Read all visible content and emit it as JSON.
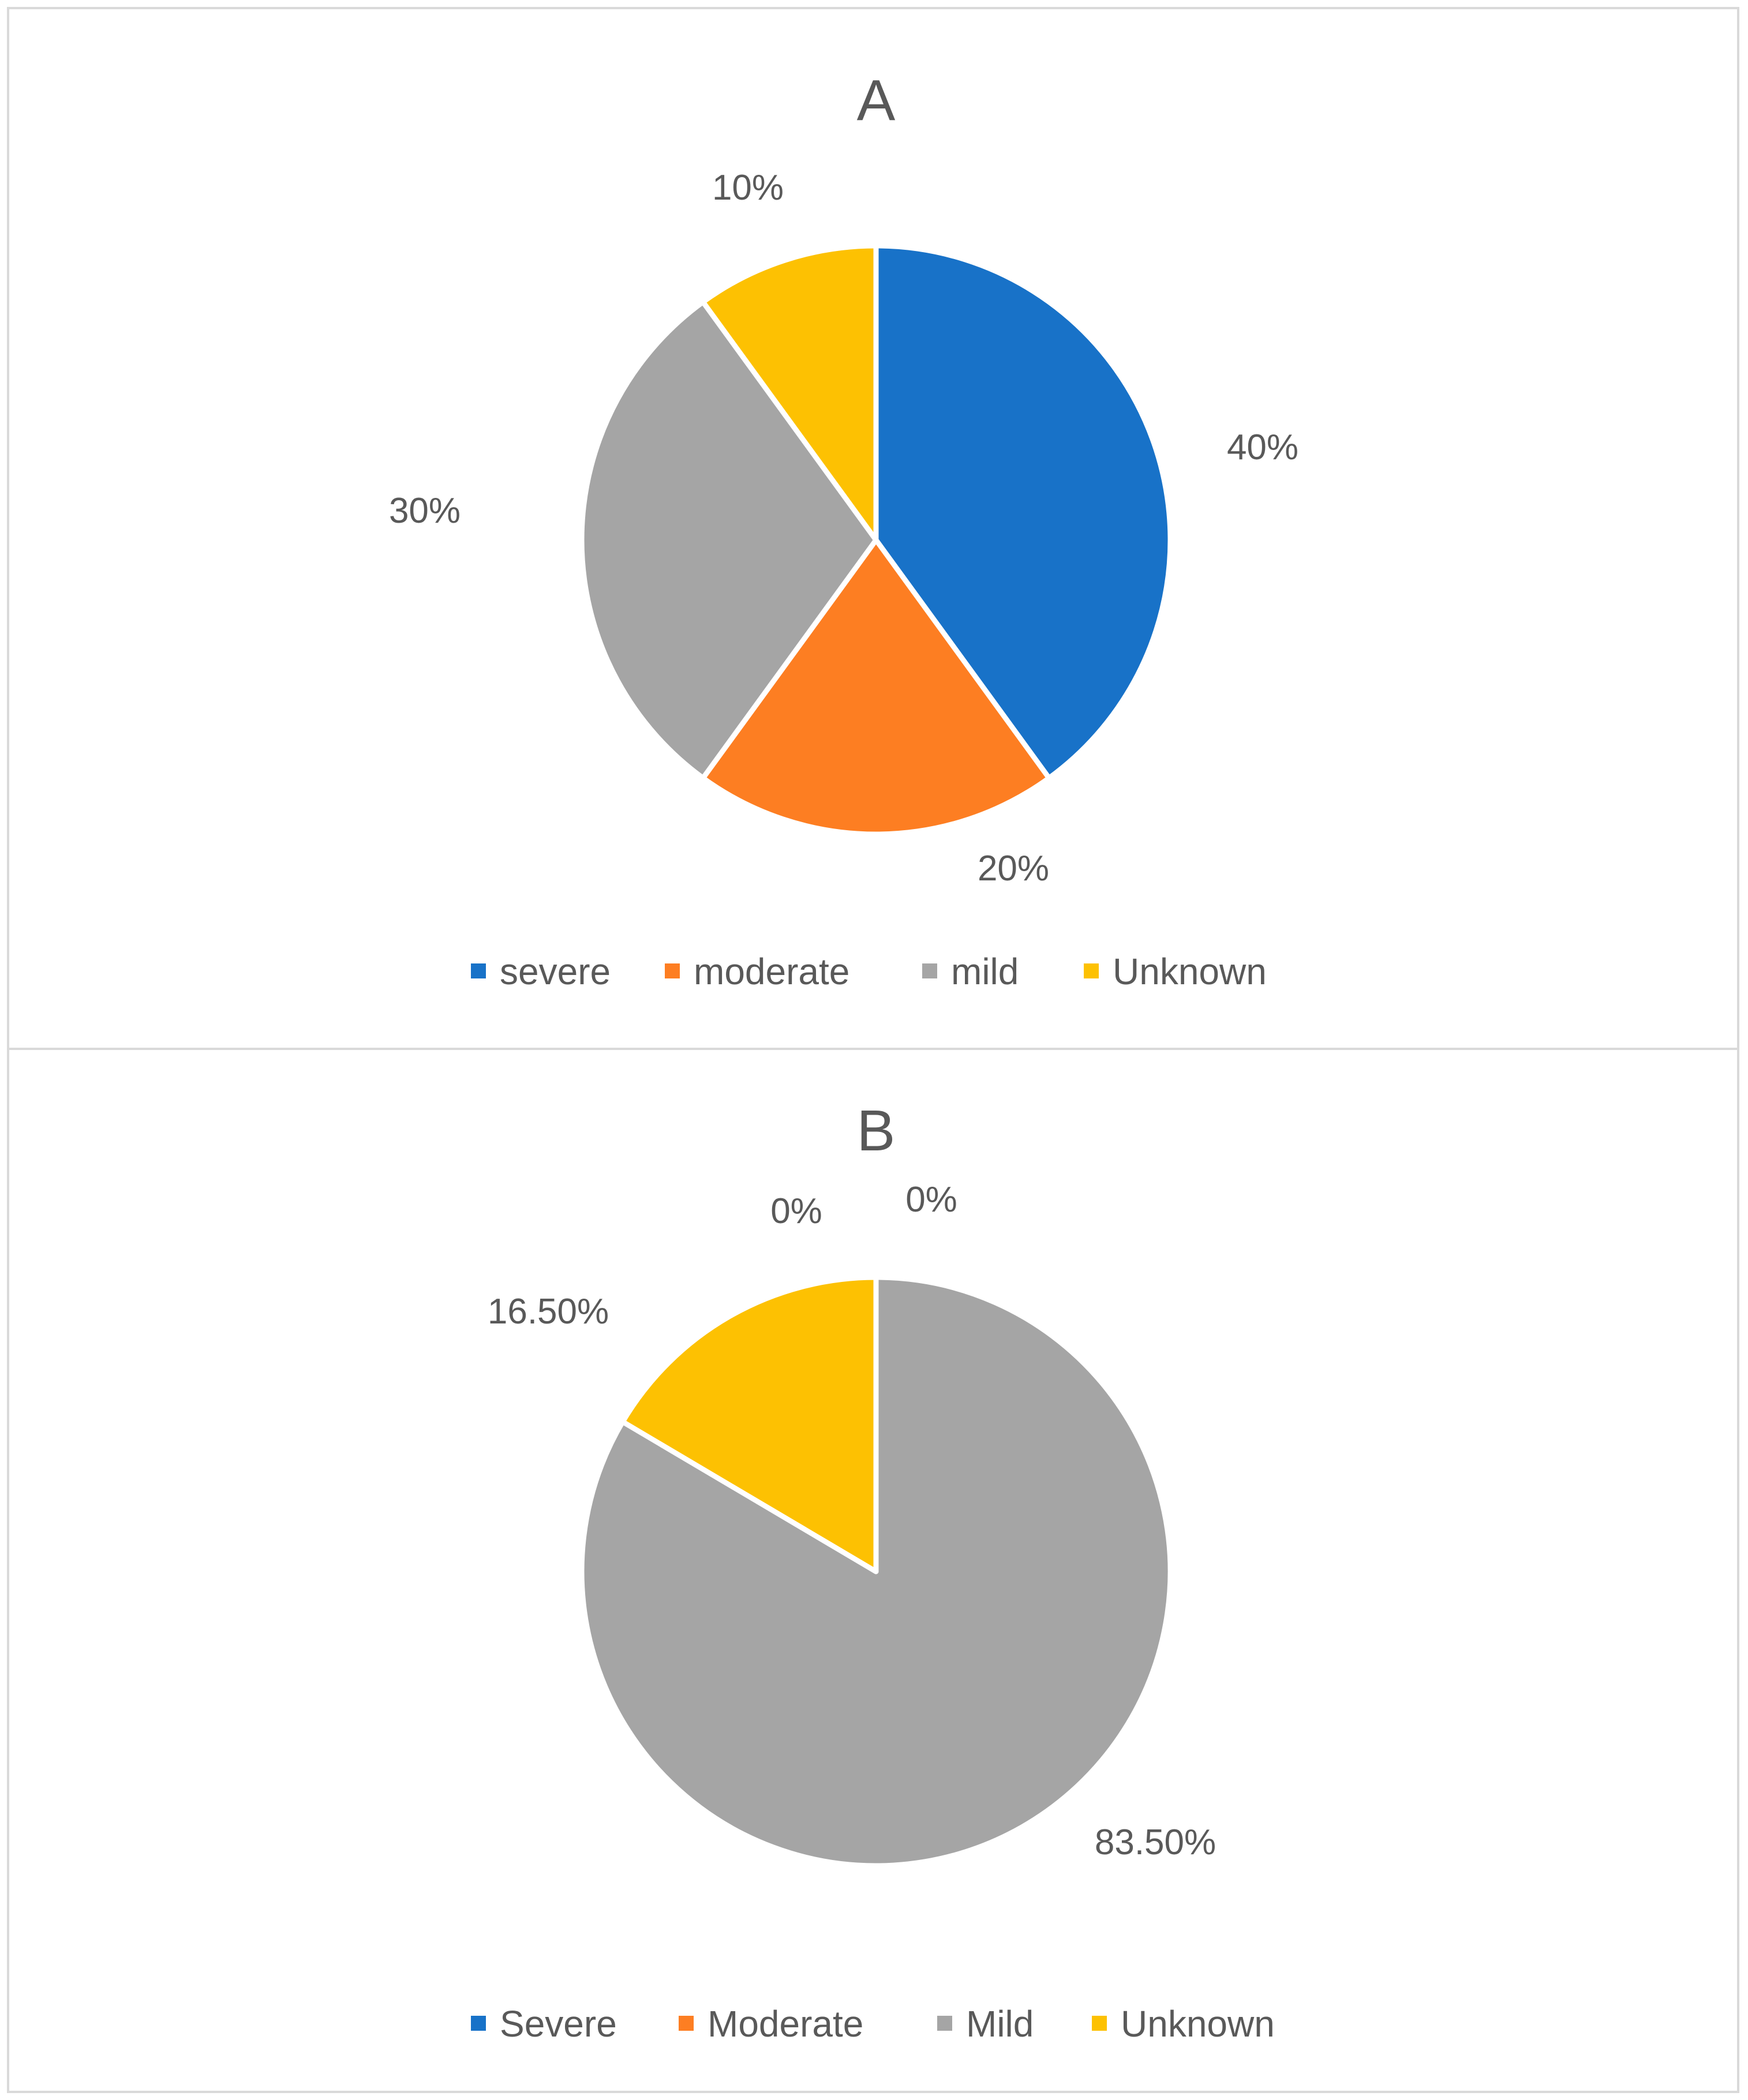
{
  "chart_data": [
    {
      "type": "pie",
      "title": "A",
      "categories": [
        "severe",
        "moderate",
        "mild",
        "Unknown"
      ],
      "values": [
        40,
        20,
        30,
        10
      ],
      "data_labels": [
        "40%",
        "20%",
        "30%",
        "10%"
      ],
      "colors": [
        "#1872c8",
        "#fd7e22",
        "#a5a5a5",
        "#fdc102"
      ],
      "legend_position": "bottom"
    },
    {
      "type": "pie",
      "title": "B",
      "categories": [
        "Severe",
        "Moderate",
        "Mild",
        "Unknown"
      ],
      "values": [
        0,
        0,
        83.5,
        16.5
      ],
      "data_labels": [
        "0%",
        "0%",
        "83.50%",
        "16.50%"
      ],
      "colors": [
        "#1872c8",
        "#fd7e22",
        "#a5a5a5",
        "#fdc102"
      ],
      "legend_position": "bottom"
    }
  ]
}
